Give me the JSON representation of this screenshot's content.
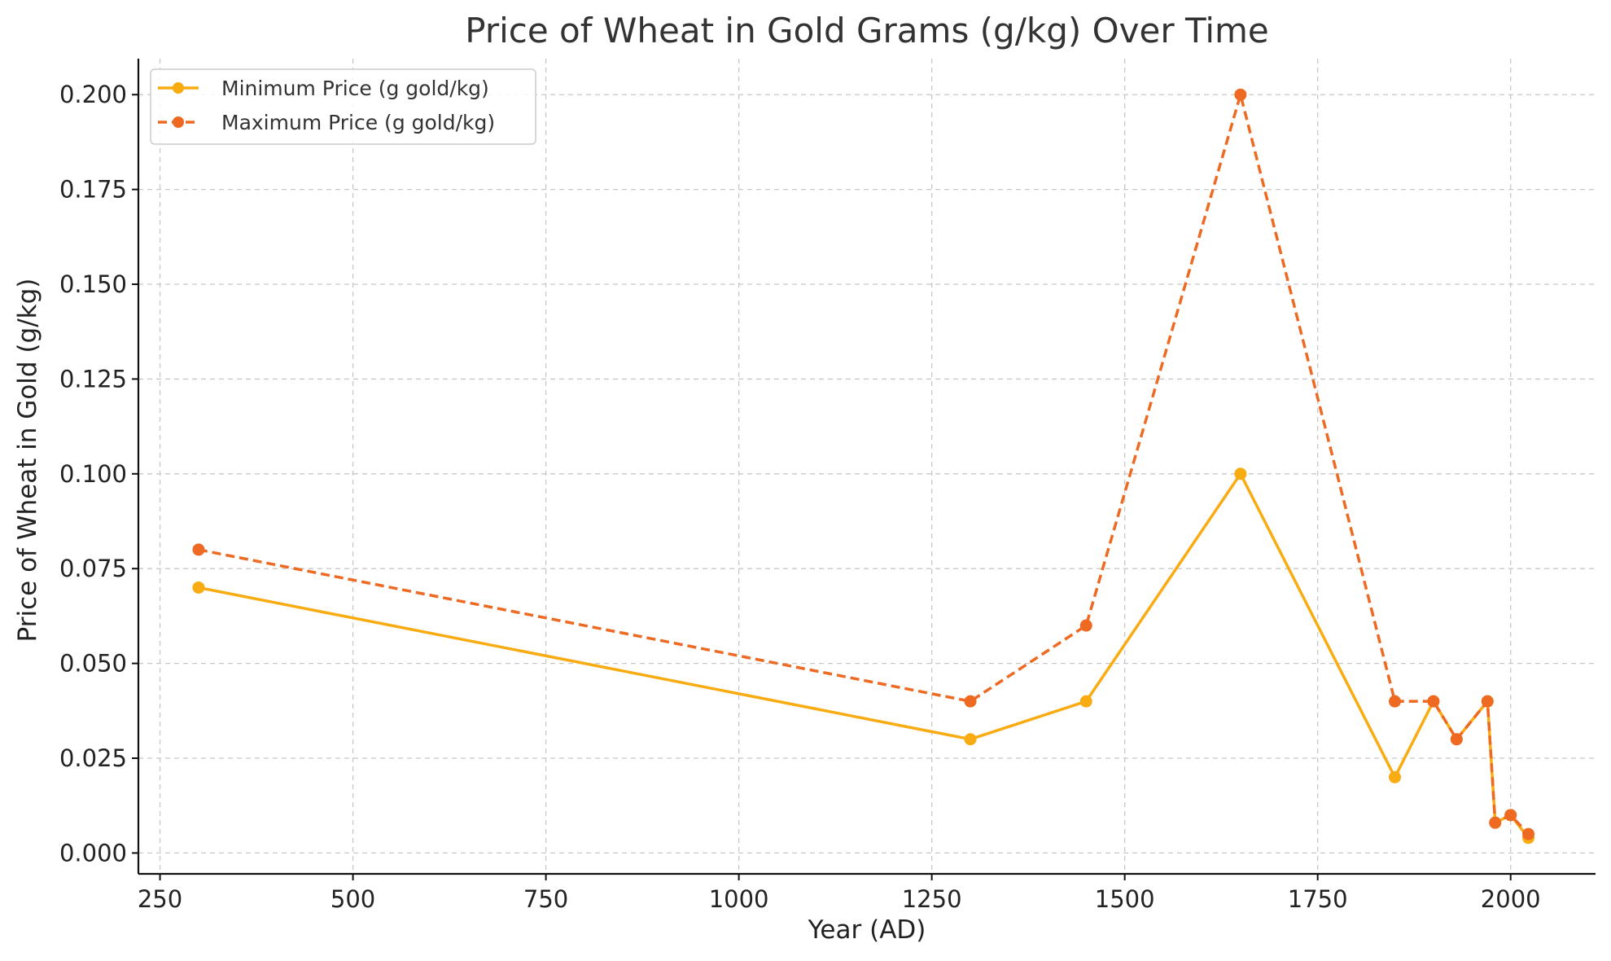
{
  "chart_data": {
    "type": "line",
    "title": "Price of Wheat in Gold Grams (g/kg) Over Time",
    "xlabel": "Year (AD)",
    "ylabel": "Price of Wheat in Gold (g/kg)",
    "xlim": [
      222,
      2110
    ],
    "ylim": [
      -0.0055,
      0.2095
    ],
    "xticks": [
      250,
      500,
      750,
      1000,
      1250,
      1500,
      1750,
      2000
    ],
    "xtick_labels": [
      "250",
      "500",
      "750",
      "1000",
      "1250",
      "1500",
      "1750",
      "2000"
    ],
    "yticks": [
      0.0,
      0.025,
      0.05,
      0.075,
      0.1,
      0.125,
      0.15,
      0.175,
      0.2
    ],
    "ytick_labels": [
      "0.000",
      "0.025",
      "0.050",
      "0.075",
      "0.100",
      "0.125",
      "0.150",
      "0.175",
      "0.200"
    ],
    "grid": true,
    "legend_position": "top-left",
    "x": [
      300,
      1300,
      1450,
      1650,
      1850,
      1900,
      1930,
      1970,
      1980,
      2000,
      2023
    ],
    "series": [
      {
        "name": "Minimum Price (g gold/kg)",
        "color": "#f9ab12",
        "line_style": "solid",
        "marker": "circle",
        "values": [
          0.07,
          0.03,
          0.04,
          0.1,
          0.02,
          0.04,
          0.03,
          0.04,
          0.008,
          0.01,
          0.004
        ]
      },
      {
        "name": "Maximum Price (g gold/kg)",
        "color": "#ee6a22",
        "line_style": "dashed",
        "marker": "circle",
        "values": [
          0.08,
          0.04,
          0.06,
          0.2,
          0.04,
          0.04,
          0.03,
          0.04,
          0.008,
          0.01,
          0.005
        ]
      }
    ]
  }
}
